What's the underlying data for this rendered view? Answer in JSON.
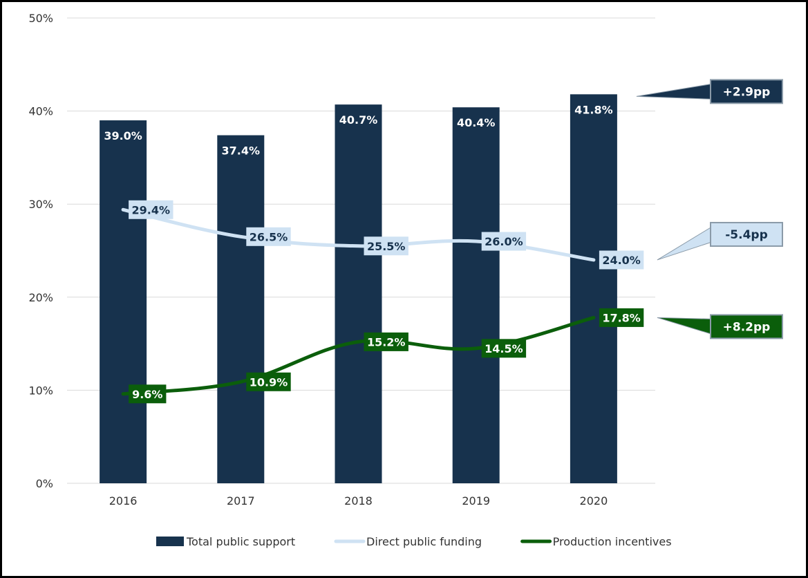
{
  "chart_data": {
    "type": "bar",
    "categories": [
      "2016",
      "2017",
      "2018",
      "2019",
      "2020"
    ],
    "ylim": [
      0,
      50
    ],
    "yticks": [
      0,
      10,
      20,
      30,
      40,
      50
    ],
    "ytick_labels": [
      "0%",
      "10%",
      "20%",
      "30%",
      "40%",
      "50%"
    ],
    "grid": true,
    "series": [
      {
        "name": "Total public support",
        "kind": "bar",
        "color": "#17324d",
        "values": [
          39.0,
          37.4,
          40.7,
          40.4,
          41.8
        ],
        "labels": [
          "39.0%",
          "37.4%",
          "40.7%",
          "40.4%",
          "41.8%"
        ]
      },
      {
        "name": "Direct public funding",
        "kind": "line",
        "color": "#cfe2f3",
        "values": [
          29.4,
          26.5,
          25.5,
          26.0,
          24.0
        ],
        "labels": [
          "29.4%",
          "26.5%",
          "25.5%",
          "26.0%",
          "24.0%"
        ]
      },
      {
        "name": "Production incentives",
        "kind": "line",
        "color": "#0b5e0b",
        "values": [
          9.6,
          10.9,
          15.2,
          14.5,
          17.8
        ],
        "labels": [
          "9.6%",
          "10.9%",
          "15.2%",
          "14.5%",
          "17.8%"
        ]
      }
    ],
    "annotations": [
      {
        "text": "+2.9pp",
        "series": "Total public support"
      },
      {
        "text": "-5.4pp",
        "series": "Direct public funding"
      },
      {
        "text": "+8.2pp",
        "series": "Production incentives"
      }
    ],
    "legend_position": "bottom"
  }
}
